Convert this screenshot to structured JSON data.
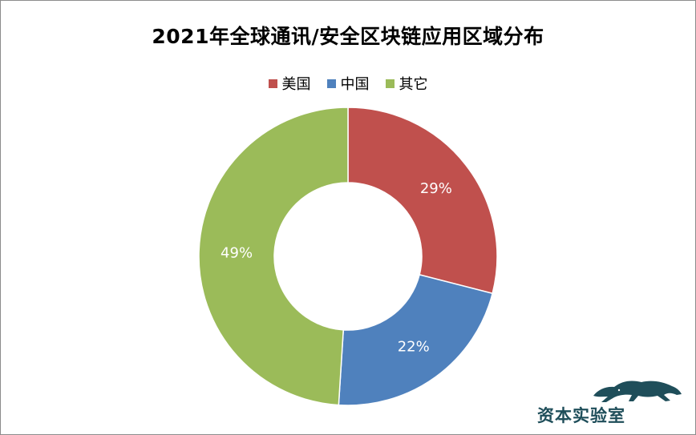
{
  "chart_data": {
    "type": "pie",
    "title": "2021年全球通讯/安全区块链应用区域分布",
    "donut": true,
    "legend_position": "top",
    "slices": [
      {
        "label": "美国",
        "value": 29,
        "display": "29%",
        "color": "#C0504D"
      },
      {
        "label": "中国",
        "value": 22,
        "display": "22%",
        "color": "#4F81BD"
      },
      {
        "label": "其它",
        "value": 49,
        "display": "49%",
        "color": "#9BBB59"
      }
    ]
  },
  "watermark": {
    "text": "资本实验室",
    "icon": "leopard-icon"
  }
}
